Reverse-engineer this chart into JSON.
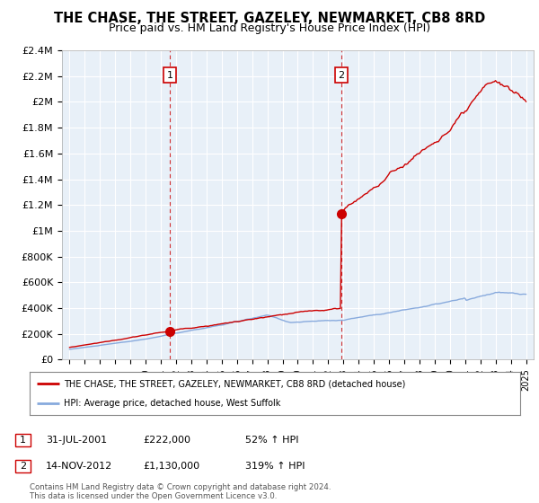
{
  "title": "THE CHASE, THE STREET, GAZELEY, NEWMARKET, CB8 8RD",
  "subtitle": "Price paid vs. HM Land Registry's House Price Index (HPI)",
  "title_fontsize": 10.5,
  "subtitle_fontsize": 9,
  "ylim": [
    0,
    2400000
  ],
  "xlim": [
    1994.5,
    2025.5
  ],
  "yticks": [
    0,
    200000,
    400000,
    600000,
    800000,
    1000000,
    1200000,
    1400000,
    1600000,
    1800000,
    2000000,
    2200000,
    2400000
  ],
  "ytick_labels": [
    "£0",
    "£200K",
    "£400K",
    "£600K",
    "£800K",
    "£1M",
    "£1.2M",
    "£1.4M",
    "£1.6M",
    "£1.8M",
    "£2M",
    "£2.2M",
    "£2.4M"
  ],
  "xticks": [
    1995,
    1996,
    1997,
    1998,
    1999,
    2000,
    2001,
    2002,
    2003,
    2004,
    2005,
    2006,
    2007,
    2008,
    2009,
    2010,
    2011,
    2012,
    2013,
    2014,
    2015,
    2016,
    2017,
    2018,
    2019,
    2020,
    2021,
    2022,
    2023,
    2024,
    2025
  ],
  "property_color": "#cc0000",
  "hpi_color": "#88aadd",
  "vline_color": "#cc0000",
  "point1_x": 2001.58,
  "point1_y": 222000,
  "point2_x": 2012.87,
  "point2_y": 1130000,
  "legend_label1": "THE CHASE, THE STREET, GAZELEY, NEWMARKET, CB8 8RD (detached house)",
  "legend_label2": "HPI: Average price, detached house, West Suffolk",
  "table_row1": [
    "1",
    "31-JUL-2001",
    "£222,000",
    "52% ↑ HPI"
  ],
  "table_row2": [
    "2",
    "14-NOV-2012",
    "£1,130,000",
    "319% ↑ HPI"
  ],
  "footer": "Contains HM Land Registry data © Crown copyright and database right 2024.\nThis data is licensed under the Open Government Licence v3.0.",
  "bg_color": "#ffffff",
  "plot_bg_color": "#e8f0f8",
  "grid_color": "#ffffff",
  "note1_label": "1",
  "note2_label": "2"
}
